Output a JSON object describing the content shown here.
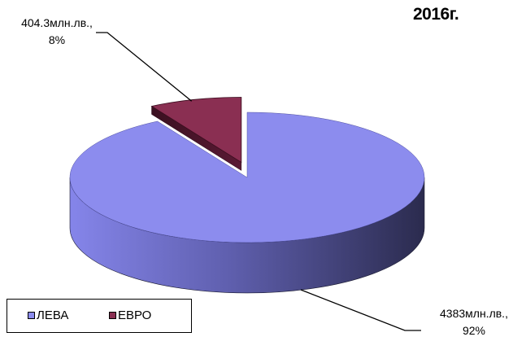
{
  "chart_data": {
    "type": "pie",
    "title": "2016г.",
    "slices": [
      {
        "name": "ЛЕВА",
        "value": 4383,
        "percent": 92,
        "label_value": "4383млн.лв.,",
        "label_percent": "92%",
        "color": "#8c8cee"
      },
      {
        "name": "ЕВРО",
        "value": 404.3,
        "percent": 8,
        "label_value": "404.3млн.лв.,",
        "label_percent": "8%",
        "color": "#8a2f52"
      }
    ],
    "legend": {
      "placement": "bottom-left",
      "items": [
        "ЛЕВА",
        "ЕВРО"
      ]
    },
    "three_d": true,
    "exploded": "ЕВРО"
  }
}
